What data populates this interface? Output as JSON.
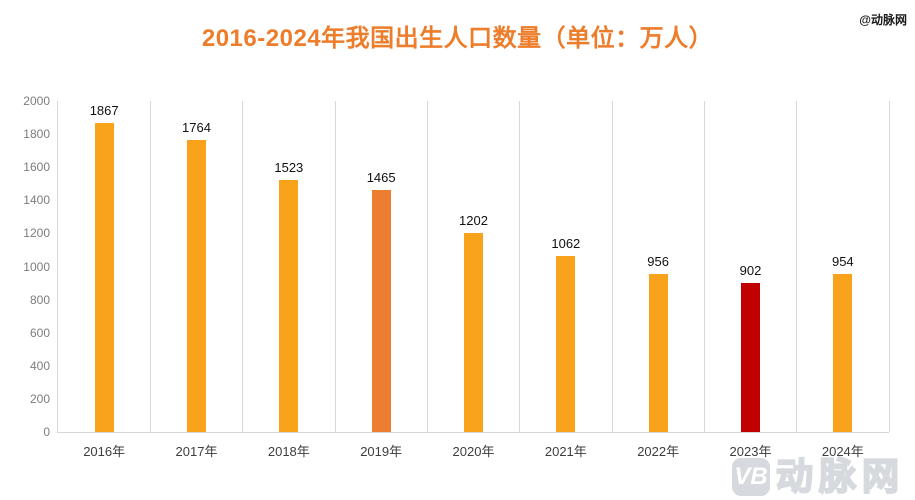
{
  "title": "2016-2024年我国出生人口数量（单位：万人）",
  "watermark_top": "@动脉网",
  "watermark_bottom": {
    "logo": "VB",
    "text": "动脉网"
  },
  "colors": {
    "title": "#ED7D2B",
    "bar_default": "#F9A21B",
    "bar_highlight_2019": "#ED7D31",
    "bar_highlight_2023": "#C00000",
    "gridline": "#D9D9D9",
    "axis_line": "#D6D6D6",
    "y_label": "#7D7D7D",
    "x_label": "#3D3D3D",
    "value_label": "#111111",
    "watermark": "#D6D9DD"
  },
  "chart_data": {
    "type": "bar",
    "title": "2016-2024年我国出生人口数量（单位：万人）",
    "categories": [
      "2016年",
      "2017年",
      "2018年",
      "2019年",
      "2020年",
      "2021年",
      "2022年",
      "2023年",
      "2024年"
    ],
    "values": [
      1867,
      1764,
      1523,
      1465,
      1202,
      1062,
      956,
      902,
      954
    ],
    "bar_colors": [
      "#F9A21B",
      "#F9A21B",
      "#F9A21B",
      "#ED7D31",
      "#F9A21B",
      "#F9A21B",
      "#F9A21B",
      "#C00000",
      "#F9A21B"
    ],
    "xlabel": "",
    "ylabel": "",
    "ylim": [
      0,
      2000
    ],
    "ytick_step": 200,
    "grid": "vertical-only",
    "legend": "none",
    "data_labels": true
  }
}
